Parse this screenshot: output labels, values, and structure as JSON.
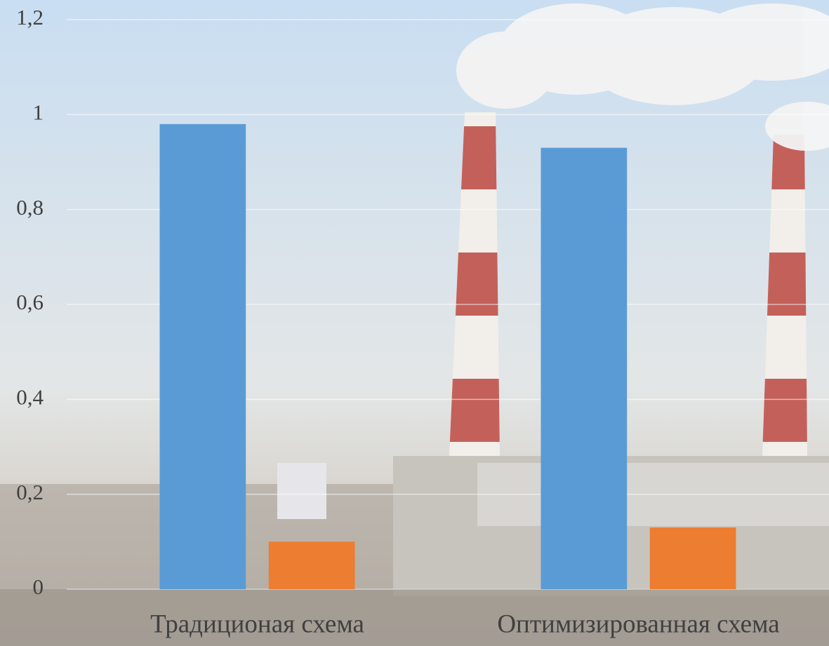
{
  "chart_data": {
    "type": "bar",
    "categories": [
      "Традиционая схема",
      "Оптимизированная схема"
    ],
    "series": [
      {
        "color": "#5b9bd5",
        "values": [
          0.98,
          0.93
        ]
      },
      {
        "color": "#ed7d31",
        "values": [
          0.1,
          0.13
        ]
      }
    ],
    "ylim": [
      0,
      1.2
    ],
    "yticks": [
      0,
      {
        "value": 0.2,
        "label": "0,2"
      },
      {
        "value": 0.4,
        "label": "0,4"
      },
      {
        "value": 0.6,
        "label": "0,6"
      },
      {
        "value": 0.8,
        "label": "0,8"
      },
      1,
      {
        "value": 1.2,
        "label": "1,2"
      }
    ],
    "grid": true
  }
}
